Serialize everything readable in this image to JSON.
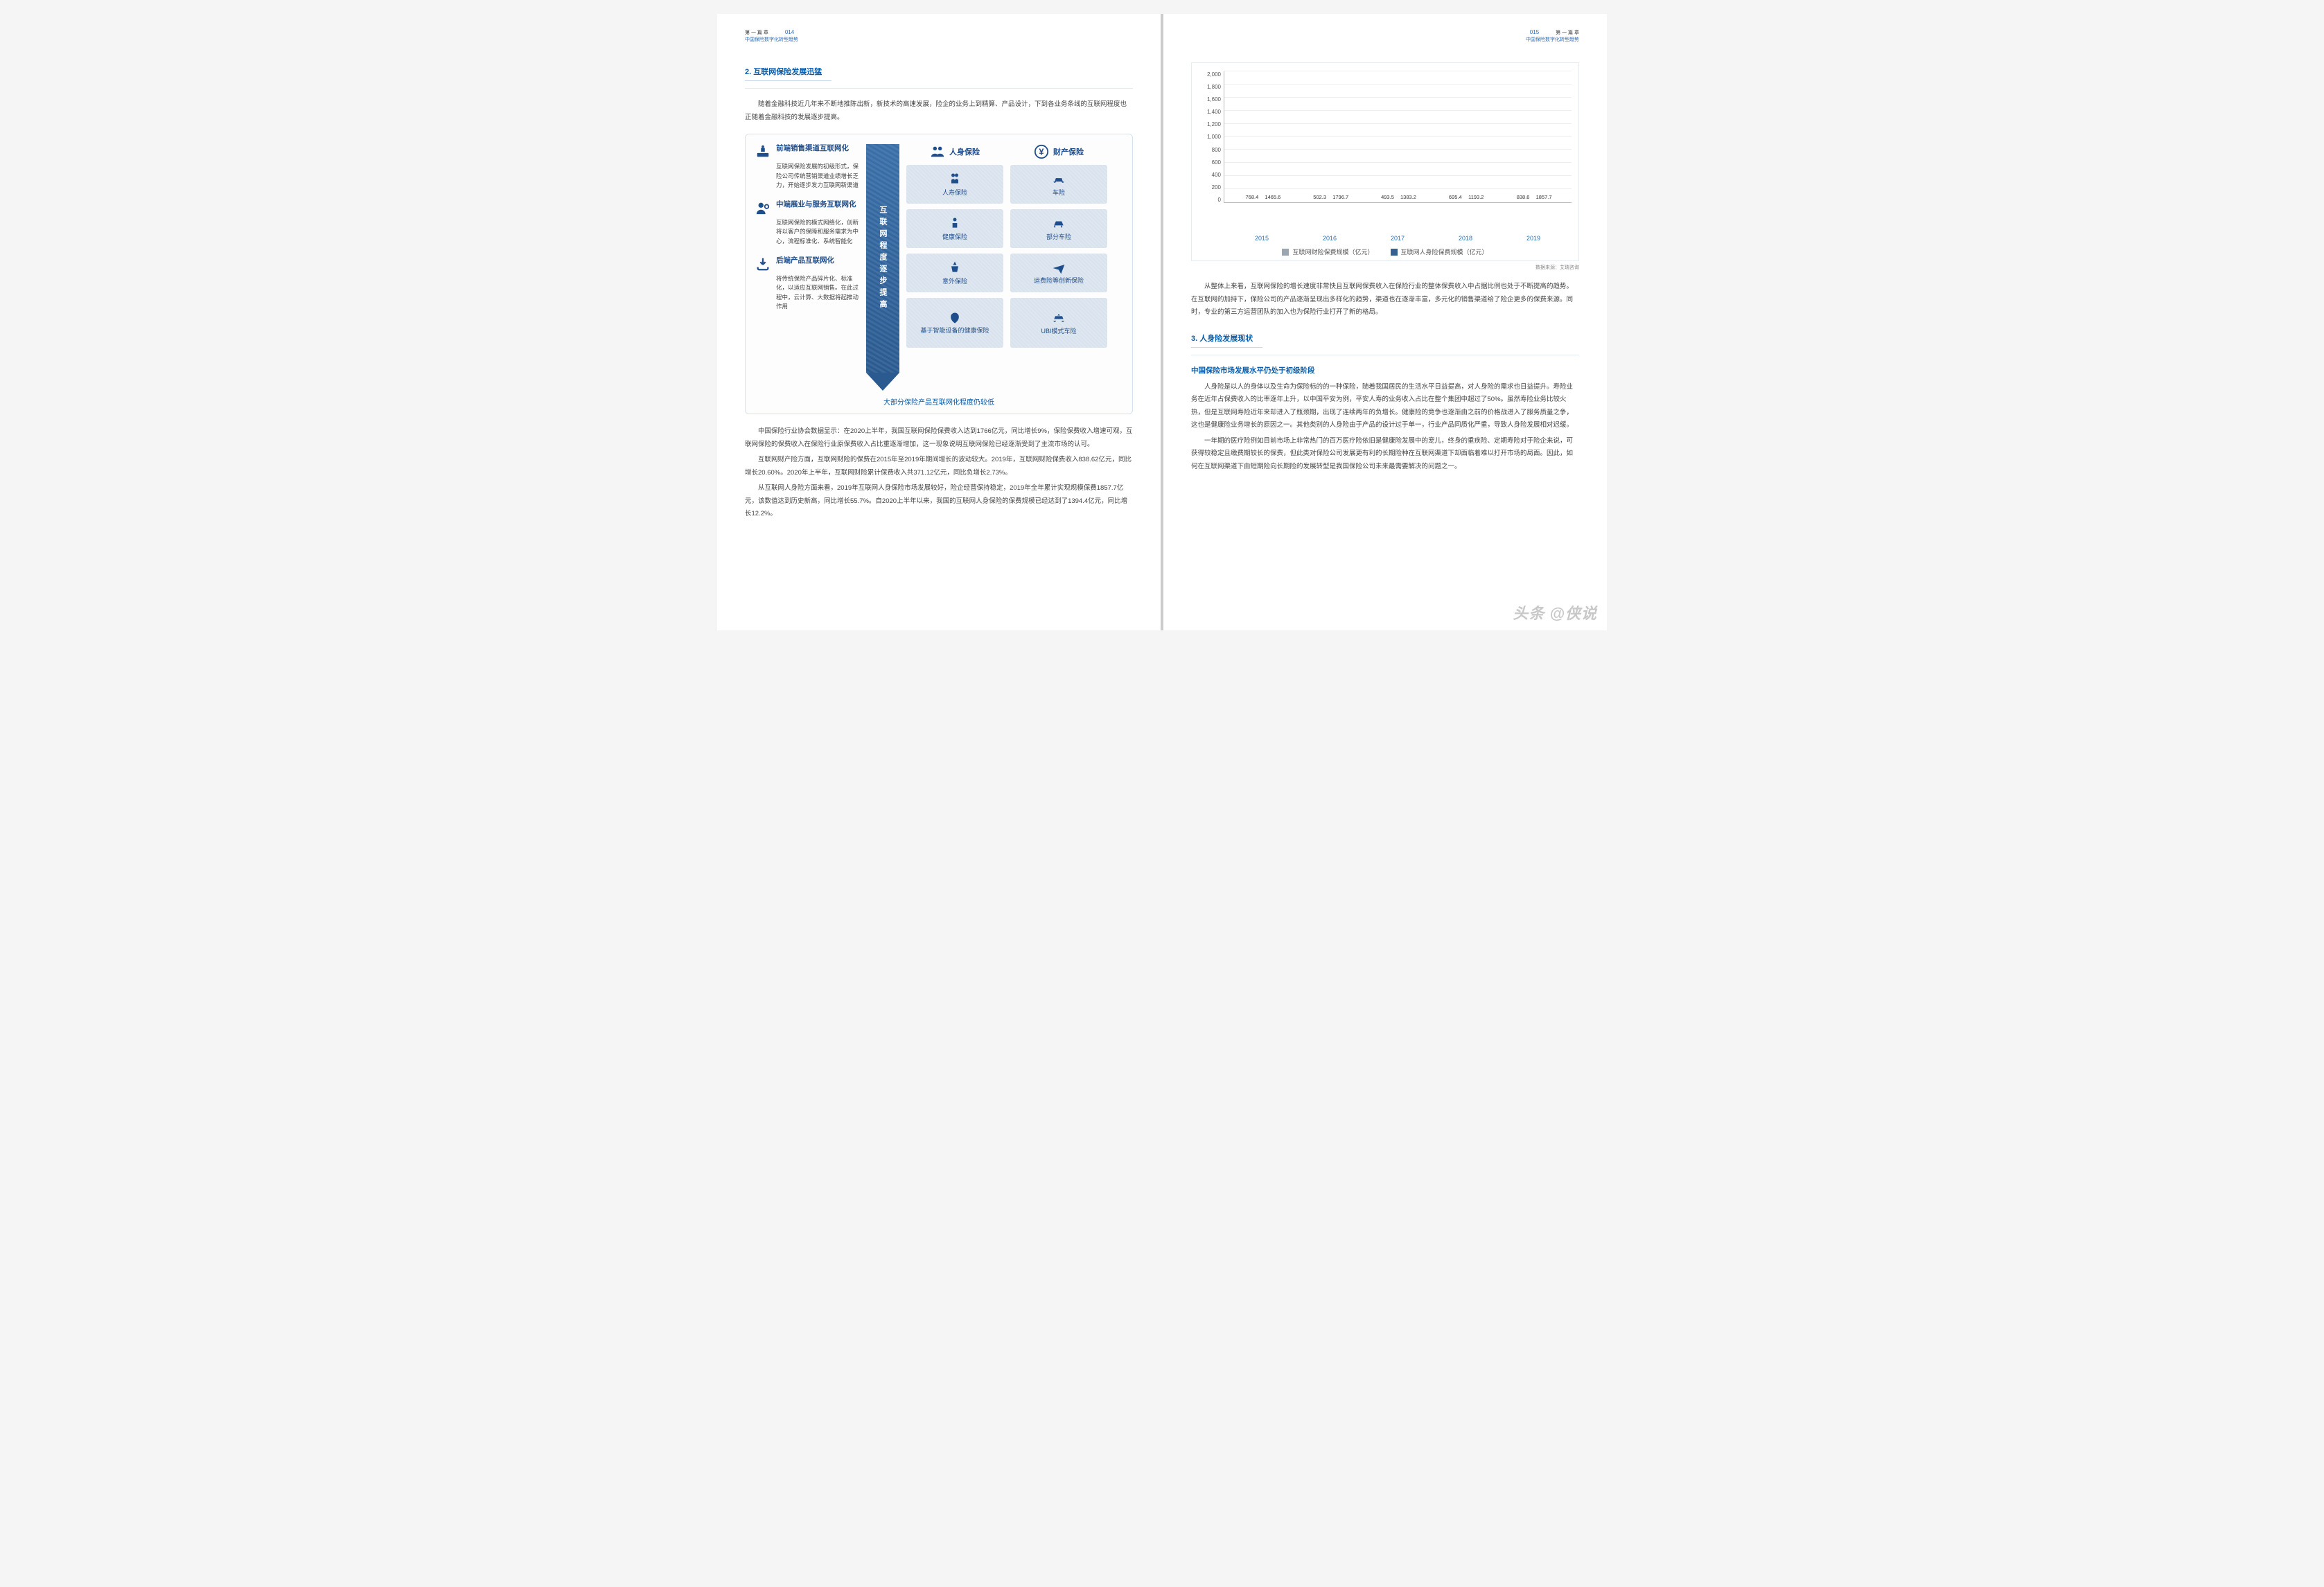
{
  "leftPage": {
    "header": {
      "chapter": "第 一 篇 章",
      "subtitle": "中国保险数字化转型趋势",
      "pageNum": "014"
    },
    "sectionNum": "2.",
    "sectionTitle": "互联网保险发展迅猛",
    "intro": "随着金融科技近几年来不断地推陈出新，新技术的高速发展，险企的业务上到精算、产品设计，下到各业务条线的互联网程度也正随着金融科技的发展逐步提高。",
    "info": {
      "left": [
        {
          "title": "前端销售渠道互联网化",
          "desc": "互联网保险发展的初级形式，保险公司传统营销渠道业绩增长乏力，开始逐步发力互联网新渠道"
        },
        {
          "title": "中端展业与服务互联网化",
          "desc": "互联网保险的模式网络化，创新将以客户的保障和服务需求为中心，流程标准化、系统智能化"
        },
        {
          "title": "后端产品互联网化",
          "desc": "将传统保险产品碎片化、标准化，以适应互联网销售。在此过程中，云计算、大数据将起推动作用"
        }
      ],
      "arrowText": "互联网程度逐步提高",
      "col1": {
        "head": "人身保险",
        "items": [
          "人寿保险",
          "健康保险",
          "意外保险",
          "基于智能设备的健康保险"
        ]
      },
      "col2": {
        "head": "财产保险",
        "items": [
          "车险",
          "部分车险",
          "运费险等创新保险",
          "UBI模式车险"
        ]
      },
      "caption": "大部分保险产品互联网化程度仍较低"
    },
    "paras": [
      "中国保险行业协会数据显示：在2020上半年，我国互联网保险保费收入达到1766亿元，同比增长9%，保险保费收入增速可观，互联网保险的保费收入在保险行业原保费收入占比重逐渐增加，这一现象说明互联网保险已经逐渐受到了主流市场的认可。",
      "互联网财产险方面，互联网财险的保费在2015年至2019年期间增长的波动较大。2019年，互联网财险保费收入838.62亿元，同比增长20.60%。2020年上半年，互联网财险累计保费收入共371.12亿元，同比负增长2.73%。",
      "从互联网人身险方面来看，2019年互联网人身保险市场发展较好，险企经营保持稳定，2019年全年累计实现规模保费1857.7亿元，该数值达到历史新高，同比增长55.7%。自2020上半年以来，我国的互联网人身保险的保费规模已经达到了1394.4亿元，同比增长12.2%。"
    ]
  },
  "rightPage": {
    "header": {
      "chapter": "第 一 篇 章",
      "subtitle": "中国保险数字化转型趋势",
      "pageNum": "015"
    },
    "chart": {
      "ymax": 2000,
      "ystep": 200,
      "yticks": [
        "2,000",
        "1,800",
        "1,600",
        "1,400",
        "1,200",
        "1,000",
        "800",
        "600",
        "400",
        "200",
        "0"
      ],
      "categories": [
        "2015",
        "2016",
        "2017",
        "2018",
        "2019"
      ],
      "series1": {
        "name": "互联网财险保费规模（亿元）",
        "color": "#9aa7b3",
        "values": [
          768.4,
          502.3,
          493.5,
          695.4,
          838.6
        ]
      },
      "series2": {
        "name": "互联网人身险保费规模（亿元）",
        "color": "#34618f",
        "values": [
          1465.6,
          1796.7,
          1383.2,
          1193.2,
          1857.7
        ]
      },
      "source": "数据来源：艾瑞咨询"
    },
    "para1": "从整体上来看，互联网保险的增长速度非常快且互联网保费收入在保险行业的整体保费收入中占据比例也处于不断提高的趋势。在互联网的加持下，保险公司的产品逐渐呈现出多样化的趋势，渠道也在逐渐丰富，多元化的销售渠道给了险企更多的保费来源。同时，专业的第三方运营团队的加入也为保险行业打开了新的格局。",
    "sectionNum": "3.",
    "sectionTitle": "人身险发展现状",
    "subtitle": "中国保险市场发展水平仍处于初级阶段",
    "paras": [
      "人身险是以人的身体以及生命为保险标的的一种保险，随着我国居民的生活水平日益提高，对人身险的需求也日益提升。寿险业务在近年占保费收入的比率逐年上升，以中国平安为例，平安人寿的业务收入占比在整个集团中超过了50%。虽然寿险业务比较火热，但是互联网寿险近年来却进入了瓶颈期，出现了连续两年的负增长。健康险的竞争也逐渐由之前的价格战进入了服务质量之争，这也是健康险业务增长的原因之一。其他类别的人身险由于产品的设计过于单一，行业产品同质化严重，导致人身险发展相对迟缓。",
      "一年期的医疗险例如目前市场上非常热门的百万医疗险依旧是健康险发展中的宠儿，终身的重疾险、定期寿险对于险企来说，可获得较稳定且缴费期较长的保费，但此类对保险公司发展更有利的长期险种在互联网渠道下却面临着难以打开市场的局面。因此，如何在互联网渠道下由短期险向长期险的发展转型是我国保险公司未来最需要解决的问题之一。"
    ]
  },
  "watermark": "头条 @侠说"
}
